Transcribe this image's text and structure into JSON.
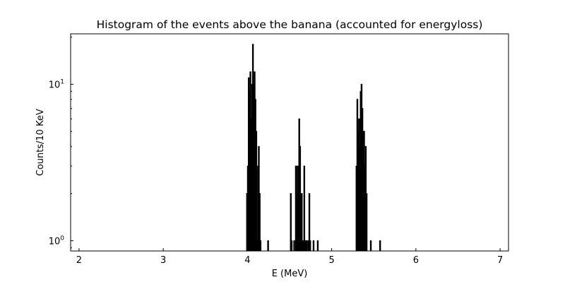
{
  "chart_data": {
    "type": "histogram",
    "title": "Histogram of the events above the banana (accounted for energyloss)",
    "xlabel": "E (MeV)",
    "ylabel": "Counts/10 KeV",
    "xlim": [
      1.9,
      7.1
    ],
    "ylim_log": [
      0.86,
      21
    ],
    "yscale": "log",
    "bin_width": 0.01,
    "x_ticks": [
      {
        "value": 2,
        "label": "2"
      },
      {
        "value": 3,
        "label": "3"
      },
      {
        "value": 4,
        "label": "4"
      },
      {
        "value": 5,
        "label": "5"
      },
      {
        "value": 6,
        "label": "6"
      },
      {
        "value": 7,
        "label": "7"
      }
    ],
    "y_ticks": [
      {
        "value": 1,
        "label": "10",
        "exp": "0"
      },
      {
        "value": 10,
        "label": "10",
        "exp": "1"
      }
    ],
    "line_color": "#000000",
    "bins": [
      [
        3.99,
        2
      ],
      [
        4.0,
        3
      ],
      [
        4.01,
        11
      ],
      [
        4.02,
        9
      ],
      [
        4.03,
        12
      ],
      [
        4.04,
        6
      ],
      [
        4.05,
        10
      ],
      [
        4.06,
        18
      ],
      [
        4.07,
        10
      ],
      [
        4.08,
        12
      ],
      [
        4.09,
        8
      ],
      [
        4.1,
        5
      ],
      [
        4.11,
        1
      ],
      [
        4.12,
        3
      ],
      [
        4.13,
        4
      ],
      [
        4.14,
        2
      ],
      [
        4.15,
        1
      ],
      [
        4.24,
        1
      ],
      [
        4.51,
        2
      ],
      [
        4.52,
        1
      ],
      [
        4.55,
        1
      ],
      [
        4.57,
        3
      ],
      [
        4.58,
        2
      ],
      [
        4.59,
        3
      ],
      [
        4.6,
        2
      ],
      [
        4.61,
        6
      ],
      [
        4.62,
        4
      ],
      [
        4.63,
        2
      ],
      [
        4.64,
        2
      ],
      [
        4.66,
        1
      ],
      [
        4.67,
        3
      ],
      [
        4.68,
        1
      ],
      [
        4.69,
        1
      ],
      [
        4.7,
        1
      ],
      [
        4.72,
        1
      ],
      [
        4.73,
        2
      ],
      [
        4.74,
        1
      ],
      [
        4.78,
        1
      ],
      [
        4.83,
        1
      ],
      [
        5.29,
        3
      ],
      [
        5.3,
        8
      ],
      [
        5.31,
        5
      ],
      [
        5.32,
        6
      ],
      [
        5.33,
        4
      ],
      [
        5.34,
        9
      ],
      [
        5.35,
        10
      ],
      [
        5.36,
        7
      ],
      [
        5.37,
        5
      ],
      [
        5.38,
        5
      ],
      [
        5.39,
        3
      ],
      [
        5.4,
        4
      ],
      [
        5.41,
        2
      ],
      [
        5.46,
        1
      ],
      [
        5.57,
        1
      ]
    ]
  }
}
